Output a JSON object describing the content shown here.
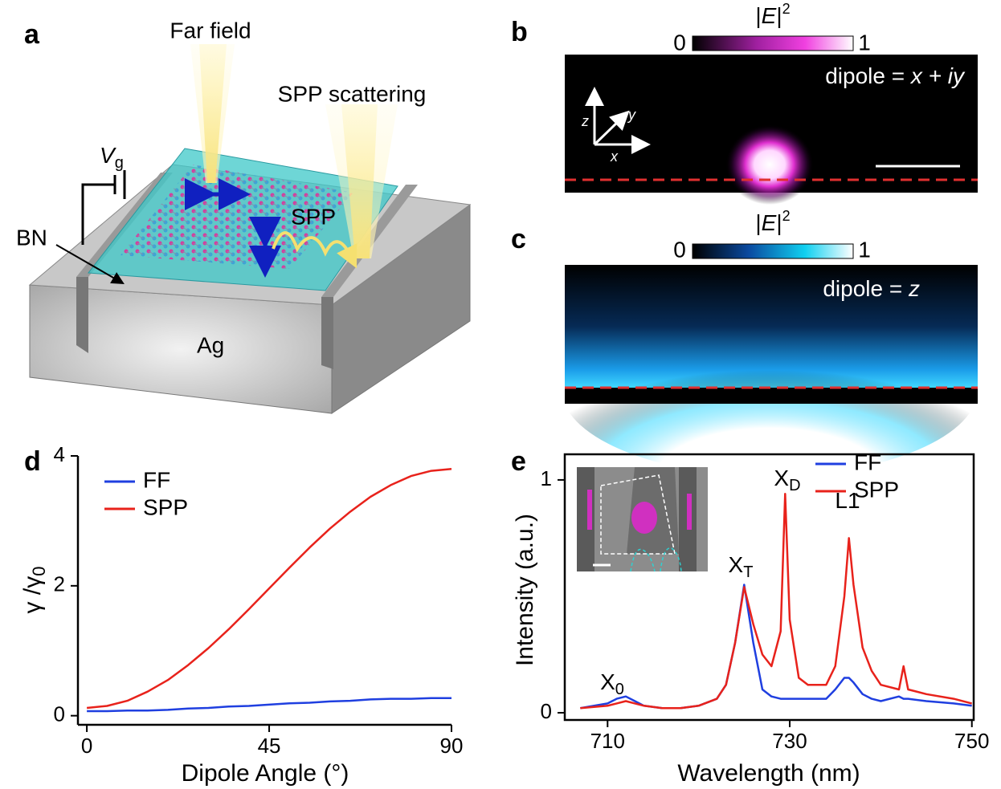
{
  "panel_labels": [
    "a",
    "b",
    "c",
    "d",
    "e"
  ],
  "panel_a": {
    "far_field": "Far field",
    "spp_scattering": "SPP scattering",
    "vg": [
      "V",
      "g"
    ],
    "bn": "BN",
    "spp": "SPP",
    "ag": "Ag"
  },
  "panel_b": {
    "colorbar_label": [
      "|",
      "E",
      "|",
      "2"
    ],
    "colorbar_range": [
      0,
      1
    ],
    "dipole": [
      "dipole = ",
      "x",
      " + ",
      "iy"
    ],
    "axes": [
      "z",
      "y",
      "x"
    ]
  },
  "panel_c": {
    "colorbar_label": [
      "|",
      "E",
      "|",
      "2"
    ],
    "colorbar_range": [
      0,
      1
    ],
    "dipole": [
      "dipole = ",
      "z"
    ]
  },
  "chart_data": [
    {
      "type": "line",
      "x_label": "Dipole Angle (°)",
      "y_label": [
        "γ /γ",
        "0"
      ],
      "x": [
        0,
        5,
        10,
        15,
        20,
        25,
        30,
        35,
        40,
        45,
        50,
        55,
        60,
        65,
        70,
        75,
        80,
        85,
        90
      ],
      "series": [
        {
          "name": "FF",
          "color": "#1f3fe0",
          "values": [
            0.07,
            0.07,
            0.08,
            0.08,
            0.09,
            0.11,
            0.12,
            0.14,
            0.15,
            0.17,
            0.19,
            0.2,
            0.22,
            0.23,
            0.25,
            0.26,
            0.26,
            0.27,
            0.27
          ]
        },
        {
          "name": "SPP",
          "color": "#e8221b",
          "values": [
            0.12,
            0.15,
            0.23,
            0.37,
            0.55,
            0.78,
            1.04,
            1.33,
            1.64,
            1.96,
            2.28,
            2.59,
            2.88,
            3.14,
            3.37,
            3.55,
            3.69,
            3.77,
            3.8
          ]
        }
      ],
      "xlim": [
        -2.2,
        90
      ],
      "xticks": [
        0,
        45,
        90
      ],
      "ylim": [
        -0.14,
        4
      ],
      "yticks": [
        0,
        2,
        4
      ],
      "legend": "upper left"
    },
    {
      "type": "line",
      "x_label": "Wavelength (nm)",
      "y_label": "Intensity (a.u.)",
      "x": [
        707,
        710,
        711,
        712,
        713,
        714,
        716,
        718,
        720,
        722,
        723,
        724,
        725,
        726,
        727,
        728,
        729,
        729.5,
        730,
        731,
        732,
        734,
        735,
        736,
        736.5,
        737,
        738,
        739,
        740,
        742,
        742.5,
        743,
        745,
        748,
        750
      ],
      "series": [
        {
          "name": "FF",
          "color": "#1f3fe0",
          "values": [
            0.02,
            0.04,
            0.06,
            0.07,
            0.05,
            0.03,
            0.02,
            0.02,
            0.03,
            0.06,
            0.12,
            0.3,
            0.55,
            0.3,
            0.1,
            0.07,
            0.06,
            0.06,
            0.06,
            0.06,
            0.06,
            0.06,
            0.1,
            0.15,
            0.15,
            0.13,
            0.08,
            0.06,
            0.05,
            0.07,
            0.06,
            0.06,
            0.05,
            0.04,
            0.03
          ]
        },
        {
          "name": "SPP",
          "color": "#e8221b",
          "values": [
            0.02,
            0.03,
            0.04,
            0.05,
            0.04,
            0.03,
            0.02,
            0.02,
            0.03,
            0.06,
            0.12,
            0.3,
            0.54,
            0.38,
            0.25,
            0.2,
            0.35,
            0.94,
            0.4,
            0.15,
            0.12,
            0.12,
            0.2,
            0.5,
            0.75,
            0.55,
            0.28,
            0.18,
            0.12,
            0.1,
            0.2,
            0.1,
            0.08,
            0.06,
            0.04
          ]
        }
      ],
      "annotations": [
        {
          "text": "X",
          "sub": "0"
        },
        {
          "text": "X",
          "sub": "T"
        },
        {
          "text": "X",
          "sub": "D"
        },
        {
          "text": "L1"
        }
      ],
      "xlim": [
        705.3,
        750.2
      ],
      "xticks": [
        710,
        730,
        750
      ],
      "ylim": [
        -0.031,
        1.11
      ],
      "yticks": [
        0,
        1
      ],
      "legend": "upper right"
    }
  ]
}
